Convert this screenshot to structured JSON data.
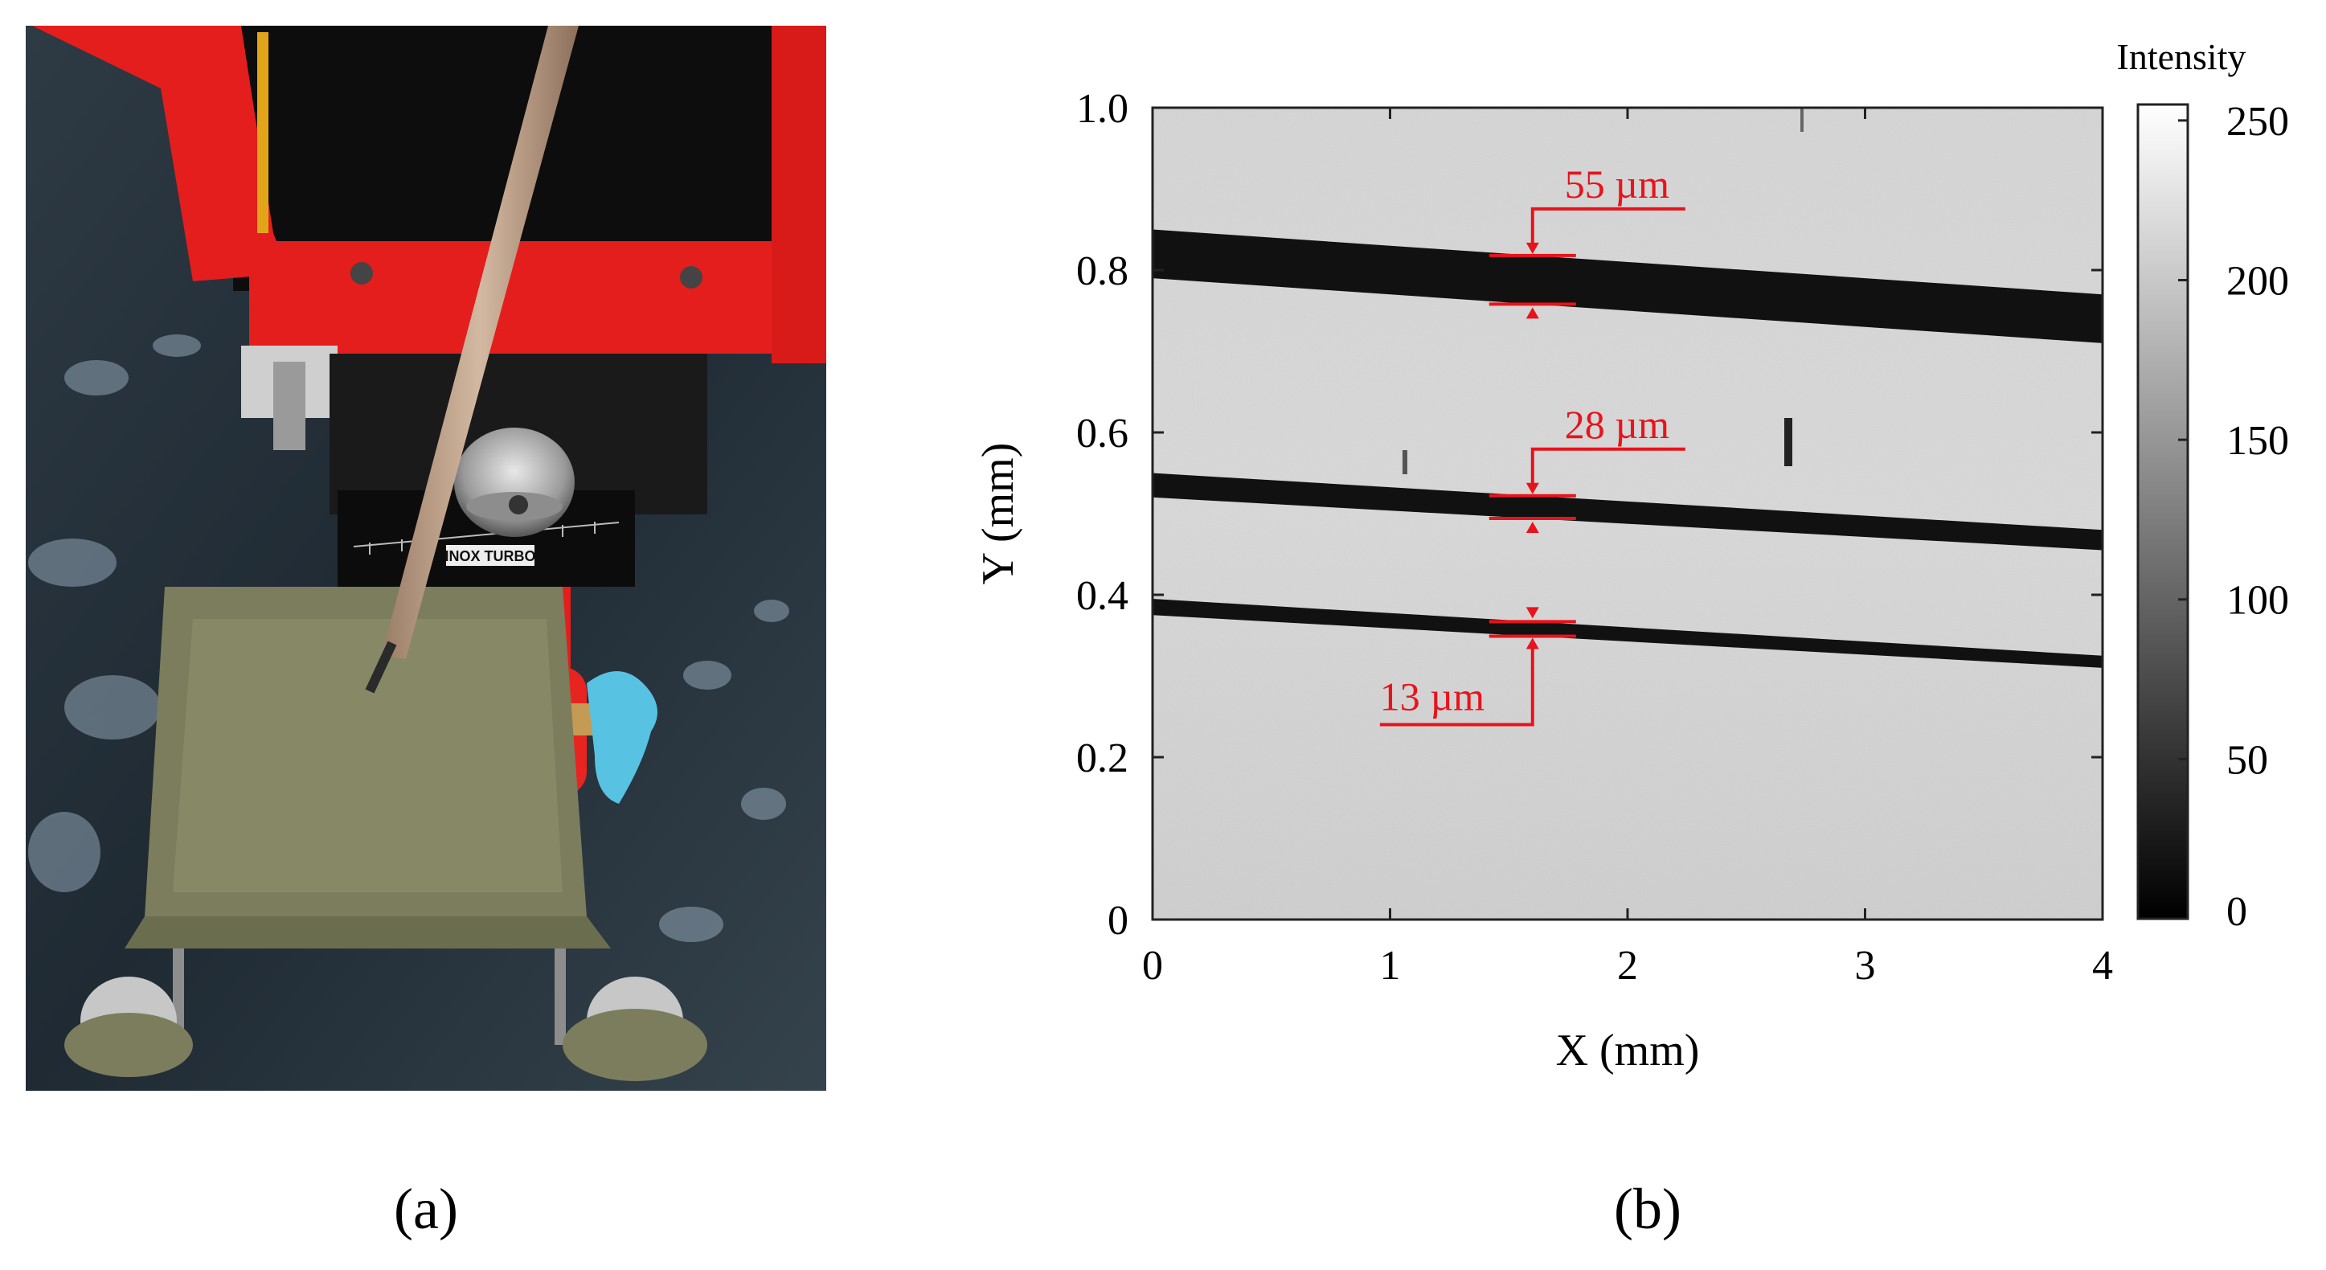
{
  "panel_a": {
    "caption": "(a)",
    "device_plate_text": "INOX TURBO"
  },
  "panel_b": {
    "caption": "(b)",
    "colorbar_title": "Intensity",
    "colorbar_ticks": [
      "250",
      "200",
      "150",
      "100",
      "50",
      "0"
    ],
    "annotations": [
      {
        "label": "55 µm"
      },
      {
        "label": "28 µm"
      },
      {
        "label": "13 µm"
      }
    ],
    "colors": {
      "annotation": "#e8131b",
      "stage_red": "#e41e1c",
      "plate_olive": "#7b7d5c"
    }
  },
  "chart_data": {
    "type": "heatmap",
    "xlabel": "X (mm)",
    "ylabel": "Y (mm)",
    "xlim": [
      0,
      4
    ],
    "ylim": [
      0,
      1.0
    ],
    "x_ticks": [
      "0",
      "1",
      "2",
      "3",
      "4"
    ],
    "y_ticks": [
      "0",
      "0.2",
      "0.4",
      "0.6",
      "0.8",
      "1.0"
    ],
    "colorbar": {
      "label": "Intensity",
      "range": [
        0,
        255
      ],
      "colormap": "gray"
    },
    "background_intensity": 225,
    "grooves": [
      {
        "label": "55 µm",
        "width_um": 55,
        "y_top_at_x0": 0.85,
        "y_bottom_at_x0": 0.79,
        "y_top_at_x4": 0.77,
        "y_bottom_at_x4": 0.71,
        "marker_x": 1.6
      },
      {
        "label": "28 µm",
        "width_um": 28,
        "y_top_at_x0": 0.55,
        "y_bottom_at_x0": 0.52,
        "y_top_at_x4": 0.48,
        "y_bottom_at_x4": 0.455,
        "marker_x": 1.6
      },
      {
        "label": "13 µm",
        "width_um": 13,
        "y_top_at_x0": 0.395,
        "y_bottom_at_x0": 0.375,
        "y_top_at_x4": 0.325,
        "y_bottom_at_x4": 0.31,
        "marker_x": 1.6
      }
    ]
  }
}
